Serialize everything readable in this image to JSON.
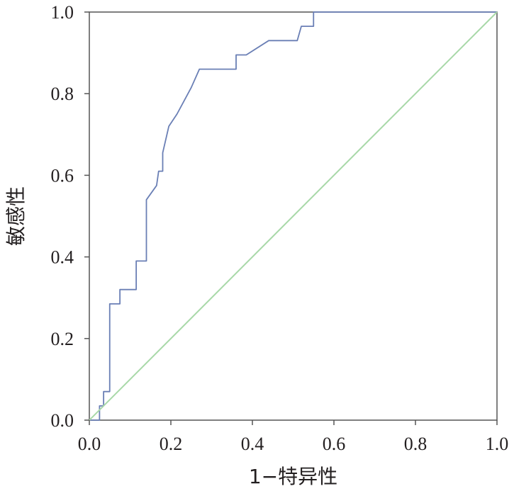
{
  "chart_data": {
    "type": "line",
    "title": "",
    "xlabel": "1−特异性",
    "ylabel": "敏感性",
    "xlim": [
      0,
      1
    ],
    "ylim": [
      0,
      1
    ],
    "x_ticks": [
      "0.0",
      "0.2",
      "0.4",
      "0.6",
      "0.8",
      "1.0"
    ],
    "y_ticks": [
      "0.0",
      "0.2",
      "0.4",
      "0.6",
      "0.8",
      "1.0"
    ],
    "grid": false,
    "series": [
      {
        "color": "#6a7fb5",
        "x": [
          0.0,
          0.025,
          0.025,
          0.035,
          0.035,
          0.05,
          0.05,
          0.075,
          0.075,
          0.115,
          0.115,
          0.14,
          0.14,
          0.165,
          0.17,
          0.18,
          0.18,
          0.195,
          0.215,
          0.25,
          0.27,
          0.36,
          0.36,
          0.385,
          0.44,
          0.51,
          0.52,
          0.55,
          0.55,
          1.0
        ],
        "y": [
          0.0,
          0.0,
          0.035,
          0.035,
          0.07,
          0.07,
          0.285,
          0.285,
          0.32,
          0.32,
          0.39,
          0.39,
          0.54,
          0.575,
          0.61,
          0.61,
          0.655,
          0.72,
          0.75,
          0.815,
          0.86,
          0.86,
          0.895,
          0.895,
          0.93,
          0.93,
          0.965,
          0.965,
          1.0,
          1.0
        ]
      },
      {
        "color": "#a8d8a8",
        "x": [
          0.0,
          1.0
        ],
        "y": [
          0.0,
          1.0
        ]
      }
    ]
  }
}
